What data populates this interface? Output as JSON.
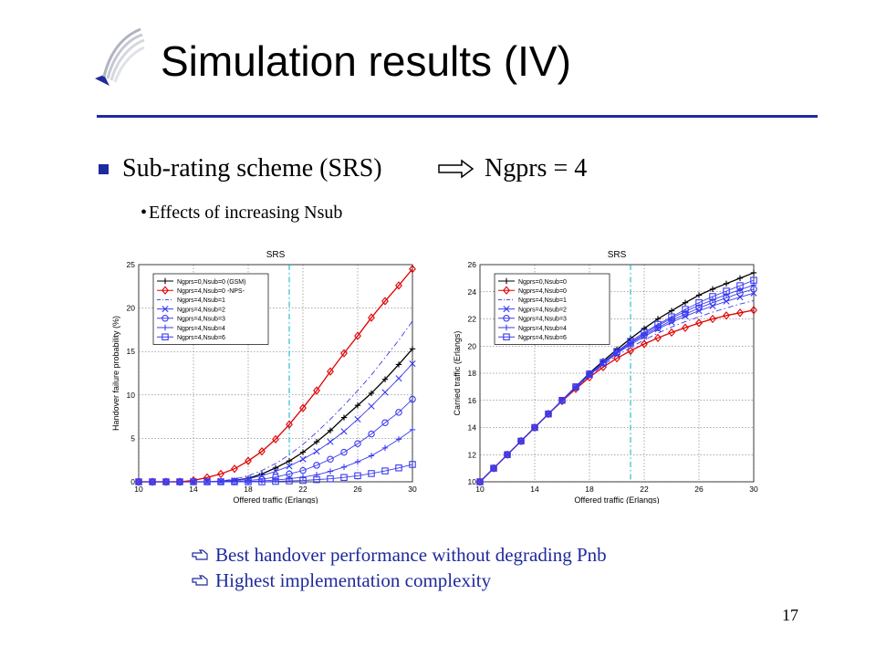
{
  "slide": {
    "title": "Simulation results (IV)",
    "bullet": {
      "left_text": "Sub-rating scheme (SRS)",
      "right_text": "Ngprs = 4",
      "sub": "Effects of increasing Nsub"
    },
    "notes": [
      "Best handover performance without degrading Pnb",
      "Highest implementation complexity"
    ],
    "page_number": "17",
    "colors": {
      "accent": "#1f2a9c",
      "red": "#e00000",
      "blue": "#3a3af0",
      "cyan": "#00b0c0",
      "black": "#000000"
    }
  },
  "chart_data": [
    {
      "type": "line",
      "title": "SRS",
      "xlabel": "Offered traffic (Erlangs)",
      "ylabel": "Handover failure probability (%)",
      "xlim": [
        10,
        30
      ],
      "ylim": [
        0,
        25
      ],
      "xticks": [
        10,
        14,
        18,
        22,
        26,
        30
      ],
      "yticks": [
        0,
        5,
        10,
        15,
        20,
        25
      ],
      "grid": true,
      "legend_position": "top-left",
      "vline_x": 21,
      "x": [
        10,
        11,
        12,
        13,
        14,
        15,
        16,
        17,
        18,
        19,
        20,
        21,
        22,
        23,
        24,
        25,
        26,
        27,
        28,
        29,
        30
      ],
      "series": [
        {
          "name": "Ngprs=0,Nsub=0 (GSM)",
          "color": "#000000",
          "marker": "plus",
          "dash": "solid",
          "values": [
            0,
            0,
            0,
            0,
            0,
            0,
            0.05,
            0.15,
            0.4,
            0.9,
            1.6,
            2.4,
            3.4,
            4.6,
            5.9,
            7.4,
            8.8,
            10.2,
            11.8,
            13.5,
            15.3
          ]
        },
        {
          "name": "Ngprs=4,Nsub=0 -NPS-",
          "color": "#e00000",
          "marker": "diamond",
          "dash": "solid",
          "values": [
            0,
            0,
            0,
            0,
            0.15,
            0.5,
            0.9,
            1.5,
            2.4,
            3.5,
            4.9,
            6.6,
            8.5,
            10.5,
            12.7,
            14.8,
            16.8,
            18.9,
            20.8,
            22.6,
            24.5
          ]
        },
        {
          "name": "Ngprs=4,Nsub=1",
          "color": "#3a3af0",
          "marker": "none",
          "dash": "dashdot",
          "values": [
            0,
            0,
            0,
            0,
            0,
            0,
            0.1,
            0.3,
            0.7,
            1.3,
            2.1,
            3.1,
            4.3,
            5.7,
            7.2,
            8.8,
            10.5,
            12.3,
            14.3,
            16.3,
            18.5
          ]
        },
        {
          "name": "Ngprs=4,Nsub=2",
          "color": "#3a3af0",
          "marker": "x",
          "dash": "solid",
          "values": [
            0,
            0,
            0,
            0,
            0,
            0,
            0.05,
            0.15,
            0.35,
            0.7,
            1.2,
            1.8,
            2.6,
            3.5,
            4.6,
            5.8,
            7.2,
            8.7,
            10.3,
            11.9,
            13.6
          ]
        },
        {
          "name": "Ngprs=4,Nsub=3",
          "color": "#3a3af0",
          "marker": "circle",
          "dash": "solid",
          "values": [
            0,
            0,
            0,
            0,
            0,
            0,
            0,
            0.05,
            0.15,
            0.3,
            0.55,
            0.9,
            1.3,
            1.9,
            2.6,
            3.4,
            4.4,
            5.5,
            6.8,
            8.0,
            9.5
          ]
        },
        {
          "name": "Ngprs=4,Nsub=4",
          "color": "#3a3af0",
          "marker": "plus",
          "dash": "solid",
          "values": [
            0,
            0,
            0,
            0,
            0,
            0,
            0,
            0,
            0.05,
            0.1,
            0.2,
            0.35,
            0.55,
            0.8,
            1.2,
            1.7,
            2.3,
            3.0,
            3.9,
            4.9,
            6.0
          ]
        },
        {
          "name": "Ngprs=4,Nsub=6",
          "color": "#3a3af0",
          "marker": "square",
          "dash": "solid",
          "values": [
            0,
            0,
            0,
            0,
            0,
            0,
            0,
            0,
            0,
            0,
            0.05,
            0.1,
            0.15,
            0.25,
            0.35,
            0.5,
            0.7,
            0.95,
            1.25,
            1.6,
            2.0
          ]
        }
      ]
    },
    {
      "type": "line",
      "title": "SRS",
      "xlabel": "Offered traffic (Erlangs)",
      "ylabel": "Carried traffic (Erlangs)",
      "xlim": [
        10,
        30
      ],
      "ylim": [
        10,
        26
      ],
      "xticks": [
        10,
        14,
        18,
        22,
        26,
        30
      ],
      "yticks": [
        10,
        12,
        14,
        16,
        18,
        20,
        22,
        24,
        26
      ],
      "grid": true,
      "legend_position": "top-left",
      "vline_x": 21,
      "x": [
        10,
        11,
        12,
        13,
        14,
        15,
        16,
        17,
        18,
        19,
        20,
        21,
        22,
        23,
        24,
        25,
        26,
        27,
        28,
        29,
        30
      ],
      "series": [
        {
          "name": "Ngprs=0,Nsub=0",
          "color": "#000000",
          "marker": "plus",
          "dash": "solid",
          "values": [
            10,
            11,
            12,
            13,
            14,
            15,
            16,
            17,
            18,
            18.9,
            19.75,
            20.55,
            21.3,
            22.0,
            22.6,
            23.2,
            23.75,
            24.2,
            24.6,
            25.0,
            25.4
          ]
        },
        {
          "name": "Ngprs=4,Nsub=0",
          "color": "#e00000",
          "marker": "diamond",
          "dash": "solid",
          "values": [
            10,
            11,
            12,
            13,
            14,
            15,
            15.95,
            16.85,
            17.7,
            18.45,
            19.1,
            19.65,
            20.15,
            20.6,
            21.0,
            21.35,
            21.7,
            22.0,
            22.25,
            22.45,
            22.65
          ]
        },
        {
          "name": "Ngprs=4,Nsub=1",
          "color": "#3a3af0",
          "marker": "none",
          "dash": "dashdot",
          "values": [
            10,
            11,
            12,
            13,
            14,
            15,
            15.97,
            16.9,
            17.8,
            18.6,
            19.3,
            19.9,
            20.45,
            20.95,
            21.4,
            21.8,
            22.15,
            22.5,
            22.8,
            23.1,
            23.35
          ]
        },
        {
          "name": "Ngprs=4,Nsub=2",
          "color": "#3a3af0",
          "marker": "x",
          "dash": "solid",
          "values": [
            10,
            11,
            12,
            13,
            14,
            15,
            15.99,
            16.95,
            17.85,
            18.7,
            19.45,
            20.1,
            20.7,
            21.25,
            21.75,
            22.2,
            22.6,
            22.95,
            23.3,
            23.6,
            23.9
          ]
        },
        {
          "name": "Ngprs=4,Nsub=3",
          "color": "#3a3af0",
          "marker": "circle",
          "dash": "solid",
          "values": [
            10,
            11,
            12,
            13,
            14,
            15,
            16,
            16.97,
            17.9,
            18.75,
            19.5,
            20.2,
            20.8,
            21.35,
            21.9,
            22.35,
            22.8,
            23.2,
            23.55,
            23.9,
            24.2
          ]
        },
        {
          "name": "Ngprs=4,Nsub=4",
          "color": "#3a3af0",
          "marker": "plus",
          "dash": "solid",
          "values": [
            10,
            11,
            12,
            13,
            14,
            15,
            16,
            16.98,
            17.92,
            18.78,
            19.55,
            20.25,
            20.9,
            21.5,
            22.05,
            22.55,
            23.0,
            23.4,
            23.8,
            24.15,
            24.5
          ]
        },
        {
          "name": "Ngprs=4,Nsub=6",
          "color": "#3a3af0",
          "marker": "square",
          "dash": "solid",
          "values": [
            10,
            11,
            12,
            13,
            14,
            15,
            16,
            17,
            17.95,
            18.8,
            19.6,
            20.35,
            21.0,
            21.6,
            22.15,
            22.7,
            23.2,
            23.65,
            24.05,
            24.45,
            24.85
          ]
        }
      ]
    }
  ]
}
